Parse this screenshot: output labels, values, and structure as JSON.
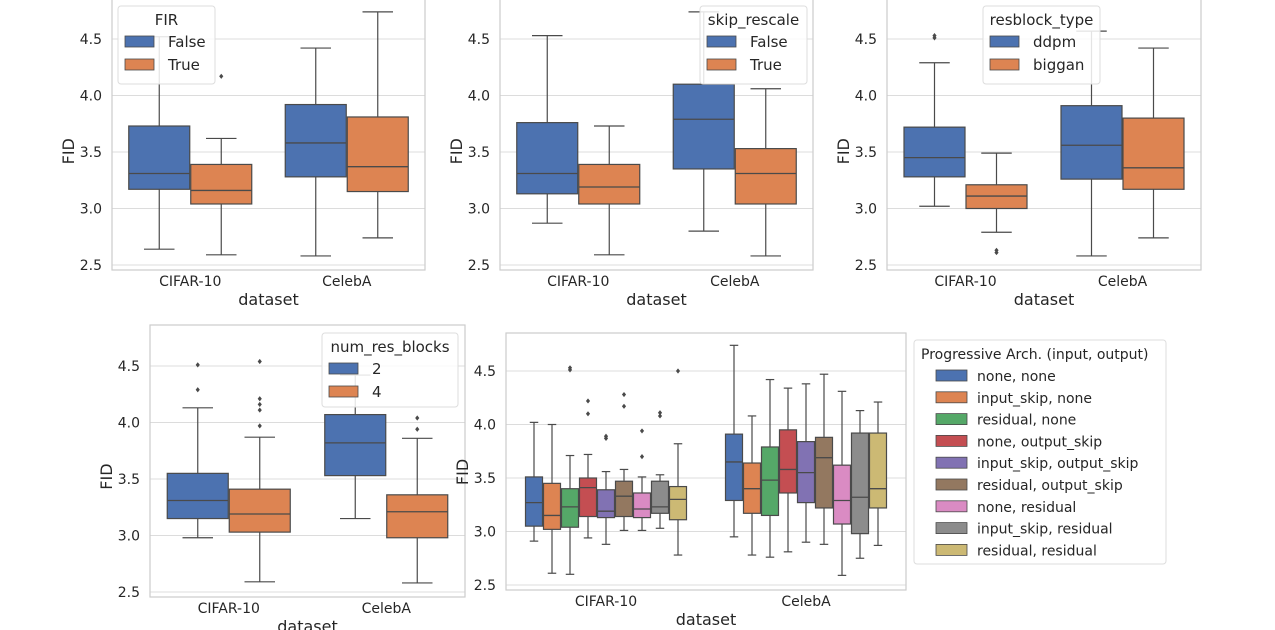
{
  "colors": {
    "grid": "#dcdcdc",
    "frame": "#cccccc",
    "line": "#4a4a4a",
    "palette": [
      "#4c72b0",
      "#dd8452",
      "#55a868",
      "#c44e52",
      "#8172b3",
      "#937860",
      "#da8bc3",
      "#8c8c8c",
      "#ccb974"
    ]
  },
  "chart_data": [
    {
      "type": "box",
      "title": "",
      "xlabel": "dataset",
      "ylabel": "FID",
      "categories": [
        "CIFAR-10",
        "CelebA"
      ],
      "ylim": [
        2.47,
        4.72
      ],
      "yticks": [
        "2.5",
        "3.0",
        "3.5",
        "4.0",
        "4.5"
      ],
      "grid": true,
      "legend": {
        "title": "FIR",
        "placement": "top-left"
      },
      "series": [
        {
          "name": "False",
          "boxes": [
            {
              "min": 2.64,
              "q1": 3.17,
              "median": 3.31,
              "q3": 3.73,
              "max": 4.52,
              "fliers": []
            },
            {
              "min": 2.58,
              "q1": 3.28,
              "median": 3.58,
              "q3": 3.92,
              "max": 4.42,
              "fliers": []
            }
          ]
        },
        {
          "name": "True",
          "boxes": [
            {
              "min": 2.59,
              "q1": 3.04,
              "median": 3.16,
              "q3": 3.39,
              "max": 3.62,
              "fliers": [
                4.17
              ]
            },
            {
              "min": 2.74,
              "q1": 3.15,
              "median": 3.37,
              "q3": 3.81,
              "max": 4.74,
              "fliers": []
            }
          ]
        }
      ]
    },
    {
      "type": "box",
      "title": "",
      "xlabel": "dataset",
      "ylabel": "FID",
      "categories": [
        "CIFAR-10",
        "CelebA"
      ],
      "ylim": [
        2.47,
        4.72
      ],
      "yticks": [
        "2.5",
        "3.0",
        "3.5",
        "4.0",
        "4.5"
      ],
      "grid": true,
      "legend": {
        "title": "skip_rescale",
        "placement": "top-right"
      },
      "series": [
        {
          "name": "False",
          "boxes": [
            {
              "min": 2.87,
              "q1": 3.13,
              "median": 3.31,
              "q3": 3.76,
              "max": 4.53,
              "fliers": []
            },
            {
              "min": 2.8,
              "q1": 3.35,
              "median": 3.79,
              "q3": 4.1,
              "max": 4.74,
              "fliers": []
            }
          ]
        },
        {
          "name": "True",
          "boxes": [
            {
              "min": 2.59,
              "q1": 3.04,
              "median": 3.19,
              "q3": 3.39,
              "max": 3.73,
              "fliers": []
            },
            {
              "min": 2.58,
              "q1": 3.04,
              "median": 3.31,
              "q3": 3.53,
              "max": 4.06,
              "fliers": []
            }
          ]
        }
      ]
    },
    {
      "type": "box",
      "title": "",
      "xlabel": "dataset",
      "ylabel": "FID",
      "categories": [
        "CIFAR-10",
        "CelebA"
      ],
      "ylim": [
        2.47,
        4.72
      ],
      "yticks": [
        "2.5",
        "3.0",
        "3.5",
        "4.0",
        "4.5"
      ],
      "grid": true,
      "legend": {
        "title": "resblock_type",
        "placement": "top-center"
      },
      "series": [
        {
          "name": "ddpm",
          "boxes": [
            {
              "min": 3.02,
              "q1": 3.28,
              "median": 3.45,
              "q3": 3.72,
              "max": 4.29,
              "fliers": [
                4.51,
                4.53
              ]
            },
            {
              "min": 2.58,
              "q1": 3.26,
              "median": 3.56,
              "q3": 3.91,
              "max": 4.57,
              "fliers": []
            }
          ]
        },
        {
          "name": "biggan",
          "boxes": [
            {
              "min": 2.79,
              "q1": 3.0,
              "median": 3.11,
              "q3": 3.21,
              "max": 3.49,
              "fliers": [
                2.61,
                2.63
              ]
            },
            {
              "min": 2.74,
              "q1": 3.17,
              "median": 3.36,
              "q3": 3.8,
              "max": 4.42,
              "fliers": []
            }
          ]
        }
      ]
    },
    {
      "type": "box",
      "title": "",
      "xlabel": "dataset",
      "ylabel": "FID",
      "categories": [
        "CIFAR-10",
        "CelebA"
      ],
      "ylim": [
        2.47,
        4.75
      ],
      "yticks": [
        "2.5",
        "3.0",
        "3.5",
        "4.0",
        "4.5"
      ],
      "grid": true,
      "legend": {
        "title": "num_res_blocks",
        "placement": "top-right"
      },
      "series": [
        {
          "name": "2",
          "boxes": [
            {
              "min": 2.98,
              "q1": 3.15,
              "median": 3.31,
              "q3": 3.55,
              "max": 4.13,
              "fliers": [
                4.29,
                4.51
              ]
            },
            {
              "min": 3.15,
              "q1": 3.53,
              "median": 3.82,
              "q3": 4.07,
              "max": 4.42,
              "fliers": []
            }
          ]
        },
        {
          "name": "4",
          "boxes": [
            {
              "min": 2.59,
              "q1": 3.03,
              "median": 3.19,
              "q3": 3.41,
              "max": 3.87,
              "fliers": [
                3.97,
                4.11,
                4.16,
                4.21,
                4.54
              ]
            },
            {
              "min": 2.58,
              "q1": 2.98,
              "median": 3.21,
              "q3": 3.36,
              "max": 3.86,
              "fliers": [
                3.94,
                4.04
              ]
            }
          ]
        }
      ]
    },
    {
      "type": "box",
      "title": "",
      "xlabel": "dataset",
      "ylabel": "FID",
      "categories": [
        "CIFAR-10",
        "CelebA"
      ],
      "ylim": [
        2.45,
        4.85
      ],
      "yticks": [
        "2.5",
        "3.0",
        "3.5",
        "4.0",
        "4.5"
      ],
      "grid": true,
      "legend": {
        "title": "Progressive Arch. (input, output)",
        "placement": "outside-right"
      },
      "series": [
        {
          "name": "none, none",
          "boxes": [
            {
              "min": 2.91,
              "q1": 3.05,
              "median": 3.27,
              "q3": 3.51,
              "max": 4.02,
              "fliers": []
            },
            {
              "min": 2.95,
              "q1": 3.29,
              "median": 3.65,
              "q3": 3.91,
              "max": 4.74,
              "fliers": []
            }
          ]
        },
        {
          "name": "input_skip, none",
          "boxes": [
            {
              "min": 2.61,
              "q1": 3.02,
              "median": 3.15,
              "q3": 3.45,
              "max": 4.0,
              "fliers": []
            },
            {
              "min": 2.78,
              "q1": 3.17,
              "median": 3.4,
              "q3": 3.64,
              "max": 4.08,
              "fliers": []
            }
          ]
        },
        {
          "name": "residual, none",
          "boxes": [
            {
              "min": 2.6,
              "q1": 3.04,
              "median": 3.23,
              "q3": 3.4,
              "max": 3.71,
              "fliers": [
                4.51,
                4.53
              ]
            },
            {
              "min": 2.76,
              "q1": 3.15,
              "median": 3.48,
              "q3": 3.79,
              "max": 4.42,
              "fliers": []
            }
          ]
        },
        {
          "name": "none, output_skip",
          "boxes": [
            {
              "min": 2.94,
              "q1": 3.14,
              "median": 3.41,
              "q3": 3.5,
              "max": 3.72,
              "fliers": [
                4.1,
                4.22
              ]
            },
            {
              "min": 2.81,
              "q1": 3.36,
              "median": 3.58,
              "q3": 3.95,
              "max": 4.34,
              "fliers": []
            }
          ]
        },
        {
          "name": "input_skip, output_skip",
          "boxes": [
            {
              "min": 2.88,
              "q1": 3.13,
              "median": 3.19,
              "q3": 3.39,
              "max": 3.56,
              "fliers": [
                3.87,
                3.89
              ]
            },
            {
              "min": 2.9,
              "q1": 3.27,
              "median": 3.55,
              "q3": 3.84,
              "max": 4.38,
              "fliers": []
            }
          ]
        },
        {
          "name": "residual, output_skip",
          "boxes": [
            {
              "min": 3.01,
              "q1": 3.14,
              "median": 3.33,
              "q3": 3.47,
              "max": 3.58,
              "fliers": [
                4.17,
                4.28
              ]
            },
            {
              "min": 2.88,
              "q1": 3.22,
              "median": 3.69,
              "q3": 3.88,
              "max": 4.47,
              "fliers": []
            }
          ]
        },
        {
          "name": "none, residual",
          "boxes": [
            {
              "min": 3.01,
              "q1": 3.13,
              "median": 3.21,
              "q3": 3.36,
              "max": 3.51,
              "fliers": [
                3.7,
                3.94
              ]
            },
            {
              "min": 2.59,
              "q1": 3.07,
              "median": 3.29,
              "q3": 3.62,
              "max": 4.31,
              "fliers": []
            }
          ]
        },
        {
          "name": "input_skip, residual",
          "boxes": [
            {
              "min": 3.03,
              "q1": 3.17,
              "median": 3.23,
              "q3": 3.47,
              "max": 3.53,
              "fliers": [
                4.08,
                4.11
              ]
            },
            {
              "min": 2.75,
              "q1": 2.98,
              "median": 3.32,
              "q3": 3.92,
              "max": 4.13,
              "fliers": []
            }
          ]
        },
        {
          "name": "residual, residual",
          "boxes": [
            {
              "min": 2.78,
              "q1": 3.11,
              "median": 3.3,
              "q3": 3.42,
              "max": 3.82,
              "fliers": [
                4.5
              ]
            },
            {
              "min": 2.87,
              "q1": 3.22,
              "median": 3.4,
              "q3": 3.92,
              "max": 4.21,
              "fliers": []
            }
          ]
        }
      ]
    }
  ]
}
